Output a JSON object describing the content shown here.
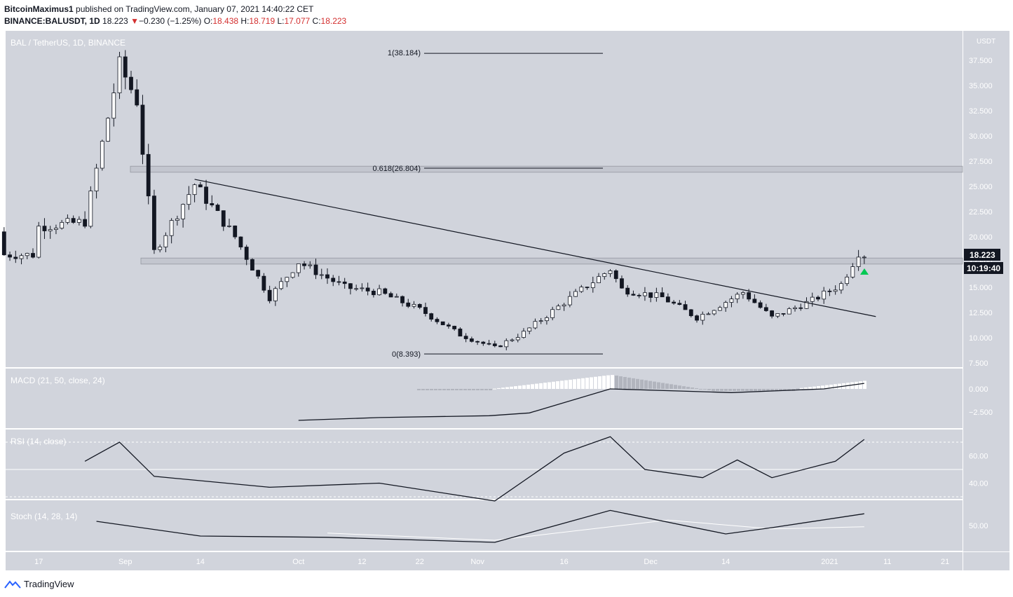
{
  "header": {
    "author": "BitcoinMaximus1",
    "published_text": " published on TradingView.com, January 07, 2021 14:40:22 CET",
    "symbol": "BINANCE:BALUSDT, 1D",
    "last": "18.223",
    "change_arrow": "▼",
    "change": "−0.230 (−1.25%)",
    "o_label": "O:",
    "o_value": "18.438",
    "h_label": "H:",
    "h_value": "18.719",
    "l_label": "L:",
    "l_value": "17.077",
    "c_label": "C:",
    "c_value": "18.223"
  },
  "main_pane": {
    "title": "BAL / TetherUS, 1D, BINANCE",
    "currency": "USDT",
    "price_label": "18.223",
    "countdown_label": "10:19:40",
    "fib_labels": [
      "1(38.184)",
      "0.618(26.804)",
      "0(8.393)"
    ]
  },
  "indicators": {
    "macd_title": "MACD (21, 50, close, 24)",
    "rsi_title": "RSI (14, close)",
    "stoch_title": "Stoch (14, 28, 14)"
  },
  "footer": {
    "brand": "TradingView",
    "logo_icon": "tradingview-logo-icon"
  },
  "colors": {
    "pane_bg": "#d1d4dc",
    "candle_up": "#ffffff",
    "candle_down": "#131722",
    "signal_arrow": "#00c853",
    "header_red": "#d32f2f"
  },
  "chart_data": [
    {
      "type": "candlestick",
      "title": "BAL / TetherUS, 1D, BINANCE",
      "ylabel": "USDT",
      "ylim": [
        7.5,
        40
      ],
      "y_ticks": [
        "7.500",
        "10.000",
        "12.500",
        "15.000",
        "17.500",
        "20.000",
        "22.500",
        "25.000",
        "27.500",
        "30.000",
        "32.500",
        "35.000",
        "37.500"
      ],
      "x_ticks": [
        "17",
        "Sep",
        "14",
        "Oct",
        "12",
        "22",
        "Nov",
        "16",
        "Dec",
        "14",
        "2021",
        "11",
        "21"
      ],
      "close_approx": [
        {
          "date": "2020-08-17",
          "close": 21.0
        },
        {
          "date": "2020-08-25",
          "close": 21.5
        },
        {
          "date": "2020-08-31",
          "close": 37.0
        },
        {
          "date": "2020-09-03",
          "close": 33.5
        },
        {
          "date": "2020-09-06",
          "close": 18.5
        },
        {
          "date": "2020-09-13",
          "close": 25.2
        },
        {
          "date": "2020-09-20",
          "close": 20.0
        },
        {
          "date": "2020-09-26",
          "close": 14.0
        },
        {
          "date": "2020-10-01",
          "close": 17.5
        },
        {
          "date": "2020-10-09",
          "close": 15.0
        },
        {
          "date": "2020-10-15",
          "close": 14.5
        },
        {
          "date": "2020-10-22",
          "close": 12.8
        },
        {
          "date": "2020-10-29",
          "close": 10.3
        },
        {
          "date": "2020-11-04",
          "close": 9.0
        },
        {
          "date": "2020-11-09",
          "close": 10.5
        },
        {
          "date": "2020-11-16",
          "close": 13.5
        },
        {
          "date": "2020-11-24",
          "close": 16.8
        },
        {
          "date": "2020-11-26",
          "close": 14.8
        },
        {
          "date": "2020-12-03",
          "close": 14.0
        },
        {
          "date": "2020-12-09",
          "close": 12.0
        },
        {
          "date": "2020-12-17",
          "close": 14.5
        },
        {
          "date": "2020-12-22",
          "close": 12.0
        },
        {
          "date": "2020-12-29",
          "close": 13.7
        },
        {
          "date": "2021-01-03",
          "close": 15.3
        },
        {
          "date": "2021-01-06",
          "close": 18.45
        },
        {
          "date": "2021-01-07",
          "close": 18.223
        }
      ],
      "fibonacci": [
        {
          "level": 1,
          "price": 38.184
        },
        {
          "level": 0.618,
          "price": 26.804
        },
        {
          "level": 0,
          "price": 8.393
        }
      ],
      "horizontal_zones": [
        [
          26.4,
          27.0
        ],
        [
          17.3,
          17.9
        ]
      ],
      "trendline": {
        "from": {
          "date": "2020-09-13",
          "price": 25.7
        },
        "to": {
          "date": "2021-01-09",
          "price": 12.1
        }
      },
      "last_price": 18.223
    },
    {
      "type": "line",
      "title": "MACD (21, 50, close, 24)",
      "y_ticks": [
        "0.000",
        "−2.500"
      ],
      "macd": [
        {
          "date": "2020-10-01",
          "value": -3.4
        },
        {
          "date": "2020-10-15",
          "value": -3.1
        },
        {
          "date": "2020-11-03",
          "value": -2.9
        },
        {
          "date": "2020-11-10",
          "value": -2.6
        },
        {
          "date": "2020-11-24",
          "value": 0.0
        },
        {
          "date": "2020-12-15",
          "value": -0.4
        },
        {
          "date": "2020-12-31",
          "value": 0.0
        },
        {
          "date": "2021-01-07",
          "value": 0.6
        }
      ]
    },
    {
      "type": "line",
      "title": "RSI (14, close)",
      "y_ticks": [
        "60.00",
        "40.00"
      ],
      "bands": [
        70,
        30
      ],
      "rsi": [
        {
          "date": "2020-08-25",
          "value": 56
        },
        {
          "date": "2020-08-31",
          "value": 70
        },
        {
          "date": "2020-09-06",
          "value": 45
        },
        {
          "date": "2020-09-26",
          "value": 37
        },
        {
          "date": "2020-10-15",
          "value": 40
        },
        {
          "date": "2020-11-04",
          "value": 27
        },
        {
          "date": "2020-11-16",
          "value": 62
        },
        {
          "date": "2020-11-24",
          "value": 74
        },
        {
          "date": "2020-11-30",
          "value": 50
        },
        {
          "date": "2020-12-10",
          "value": 44
        },
        {
          "date": "2020-12-16",
          "value": 57
        },
        {
          "date": "2020-12-22",
          "value": 44
        },
        {
          "date": "2021-01-02",
          "value": 56
        },
        {
          "date": "2021-01-07",
          "value": 72
        }
      ]
    },
    {
      "type": "line",
      "title": "Stoch (14, 28, 14)",
      "y_ticks": [
        "50.00"
      ],
      "k": [
        {
          "date": "2020-08-27",
          "value": 60
        },
        {
          "date": "2020-09-14",
          "value": 25
        },
        {
          "date": "2020-10-06",
          "value": 22
        },
        {
          "date": "2020-11-04",
          "value": 10
        },
        {
          "date": "2020-11-24",
          "value": 86
        },
        {
          "date": "2020-12-14",
          "value": 30
        },
        {
          "date": "2020-12-22",
          "value": 45
        },
        {
          "date": "2021-01-07",
          "value": 78
        }
      ],
      "d": [
        {
          "date": "2020-10-06",
          "value": 32
        },
        {
          "date": "2020-11-04",
          "value": 15
        },
        {
          "date": "2020-12-04",
          "value": 63
        },
        {
          "date": "2020-12-22",
          "value": 42
        },
        {
          "date": "2021-01-07",
          "value": 47
        }
      ]
    }
  ]
}
